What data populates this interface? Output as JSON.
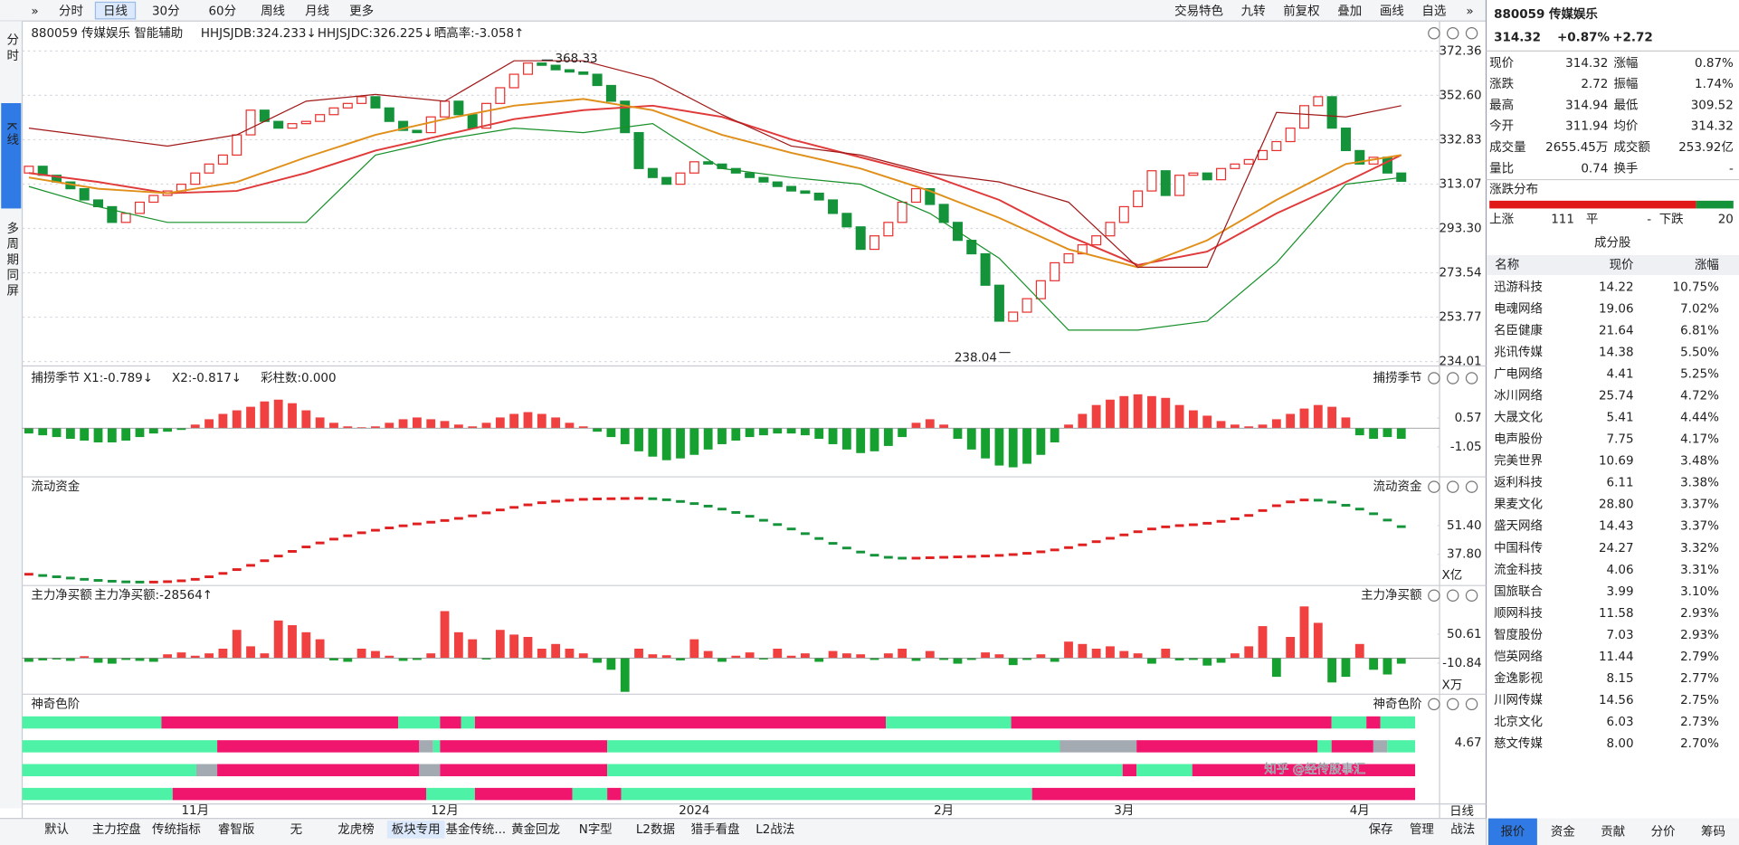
{
  "toolbar": {
    "left": [
      "分时",
      "日线",
      "30分",
      "60分",
      "周线",
      "月线",
      "更多"
    ],
    "active": 1,
    "right": [
      "交易特色",
      "九转",
      "前复权",
      "叠加",
      "画线",
      "自选"
    ]
  },
  "sidebar": {
    "items": [
      "分时",
      "K线",
      "多周期同屏"
    ],
    "active": 1
  },
  "chart_data": [
    {
      "type": "candlestick",
      "title": "880059 传媒娱乐",
      "indicators": [
        "智能辅助",
        "HHJSJDB:324.233↓",
        "HHJSJDC:326.225↓",
        "晒高率:-3.058↑"
      ],
      "indicator_colors": [
        "#333333",
        "#d49a10",
        "#d03030",
        "#d49a10"
      ],
      "first_open": 318,
      "closes": [
        321,
        317,
        314,
        311,
        306,
        303,
        296,
        300,
        305,
        308,
        310,
        313,
        318,
        322,
        326,
        335,
        346,
        341,
        338,
        340,
        341,
        344,
        347,
        349,
        352,
        347,
        341,
        337,
        336,
        343,
        350,
        344,
        338,
        349,
        356,
        362,
        367,
        366,
        364,
        363,
        362,
        357,
        350,
        336,
        320,
        316,
        313,
        318,
        323,
        322,
        320,
        318,
        316,
        314,
        312,
        310,
        309,
        306,
        300,
        294,
        284,
        290,
        296,
        305,
        311,
        304,
        296,
        288,
        282,
        268,
        252,
        256,
        262,
        270,
        278,
        282,
        286,
        290,
        296,
        303,
        310,
        319,
        308,
        317,
        318,
        315,
        320,
        322,
        324,
        328,
        332,
        338,
        348,
        352,
        338,
        328,
        322,
        325,
        318,
        314.32
      ],
      "up_color": "#e8312f",
      "down_color": "#15933a",
      "line_index": [
        0,
        5,
        10,
        15,
        20,
        25,
        30,
        35,
        40,
        45,
        50,
        55,
        60,
        65,
        70,
        75,
        80,
        85,
        90,
        95,
        99
      ],
      "lines": [
        {
          "color": "#e03a3a",
          "values": [
            318,
            314,
            309,
            310,
            318,
            328,
            335,
            342,
            346,
            348,
            343,
            333,
            325,
            317,
            306,
            290,
            277,
            283,
            300,
            314,
            326
          ]
        },
        {
          "color": "#e0901a",
          "values": [
            316,
            311,
            309,
            314,
            325,
            335,
            342,
            348,
            351,
            346,
            335,
            327,
            320,
            310,
            298,
            284,
            276,
            288,
            306,
            322,
            326
          ]
        },
        {
          "color": "#a01818",
          "values": [
            338,
            334,
            330,
            335,
            350,
            353,
            350,
            368,
            368,
            360,
            344,
            330,
            326,
            318,
            314,
            305,
            276,
            276,
            345,
            343,
            348
          ]
        },
        {
          "color": "#18902a",
          "values": [
            312,
            303,
            296,
            296,
            296,
            326,
            333,
            338,
            336,
            340,
            320,
            316,
            313,
            300,
            280,
            248,
            248,
            252,
            278,
            313,
            316
          ]
        }
      ],
      "annotations": [
        {
          "index": 37,
          "value": 368.33
        },
        {
          "index": 70,
          "value": 238.04
        }
      ],
      "ylim": [
        234.01,
        372.36
      ],
      "yticks": [
        372.36,
        {
          "value": 352.6,
          "label": "352.60"
        },
        332.83,
        313.07,
        {
          "value": 293.3,
          "label": "293.30"
        },
        273.54,
        253.77,
        234.01
      ],
      "grid": true,
      "x_labels": [
        {
          "index": 12,
          "label": "11月"
        },
        {
          "index": 30,
          "label": "12月"
        },
        {
          "index": 48,
          "label": "2024"
        },
        {
          "index": 66,
          "label": "2月"
        },
        {
          "index": 79,
          "label": "3月"
        },
        {
          "index": 96,
          "label": "4月"
        }
      ]
    },
    {
      "type": "bar",
      "title": "捕捞季节",
      "legend": [
        "X1:-0.789↓",
        "X2:-0.817↓",
        "彩柱数:0.000"
      ],
      "legend_colors": [
        "#d49a10",
        "#c020c0",
        "#15933a"
      ],
      "values": [
        -0.3,
        -0.4,
        -0.5,
        -0.6,
        -0.7,
        -0.8,
        -0.8,
        -0.7,
        -0.5,
        -0.3,
        -0.2,
        -0.1,
        0.2,
        0.5,
        0.8,
        1.0,
        1.2,
        1.5,
        1.6,
        1.4,
        1.0,
        0.6,
        0.3,
        0.1,
        0.05,
        0.1,
        0.3,
        0.5,
        0.6,
        0.5,
        0.4,
        0.2,
        0.1,
        0.3,
        0.6,
        0.8,
        0.9,
        0.8,
        0.6,
        0.3,
        0.1,
        -0.2,
        -0.5,
        -0.9,
        -1.3,
        -1.6,
        -1.8,
        -1.7,
        -1.5,
        -1.2,
        -0.9,
        -0.7,
        -0.5,
        -0.4,
        -0.3,
        -0.3,
        -0.4,
        -0.6,
        -0.9,
        -1.2,
        -1.4,
        -1.3,
        -1.0,
        -0.5,
        0.3,
        0.5,
        0.2,
        -0.6,
        -1.2,
        -1.7,
        -2.1,
        -2.2,
        -2.0,
        -1.5,
        -0.8,
        0.2,
        0.8,
        1.3,
        1.6,
        1.8,
        1.9,
        1.8,
        1.7,
        1.3,
        1.0,
        0.7,
        0.4,
        0.2,
        0.1,
        0.2,
        0.5,
        0.8,
        1.1,
        1.3,
        1.2,
        0.6,
        -0.4,
        -0.6,
        -0.5,
        -0.6
      ],
      "up_color": "#f04040",
      "down_color": "#15a030",
      "ylim": [
        -2.61,
        2.87
      ],
      "yticks": [
        0.57,
        -1.05
      ]
    },
    {
      "type": "dots",
      "title": "流动资金",
      "unit": "X亿",
      "values": [
        28.4,
        27.8,
        27.2,
        26.6,
        26.0,
        25.5,
        25.1,
        24.8,
        24.7,
        24.7,
        24.9,
        25.3,
        26.0,
        27.2,
        28.8,
        30.6,
        32.6,
        34.8,
        37.0,
        39.2,
        41.3,
        43.2,
        45.0,
        46.6,
        48.0,
        49.2,
        50.3,
        51.3,
        52.2,
        53.0,
        53.8,
        54.8,
        56.0,
        57.4,
        58.8,
        60.0,
        61.2,
        62.2,
        62.9,
        63.4,
        63.8,
        64.0,
        64.1,
        64.2,
        64.3,
        64.1,
        63.6,
        62.8,
        61.8,
        60.6,
        59.2,
        57.6,
        55.8,
        53.9,
        51.9,
        49.8,
        47.6,
        45.3,
        43.0,
        40.8,
        38.9,
        37.4,
        36.4,
        36.0,
        36.0,
        36.2,
        36.4,
        36.6,
        36.8,
        37.0,
        37.3,
        37.7,
        38.3,
        39.0,
        39.9,
        41.0,
        42.3,
        43.8,
        45.4,
        47.0,
        48.5,
        49.8,
        50.8,
        51.4,
        51.8,
        52.5,
        53.4,
        54.6,
        56.2,
        58.5,
        60.8,
        62.6,
        63.5,
        63.4,
        62.5,
        61.0,
        59.2,
        57.0,
        54.0,
        50.9
      ],
      "up_color": "#e02020",
      "down_color": "#15933a",
      "ylim": [
        23.6,
        69.2
      ],
      "yticks": [
        {
          "value": 51.4,
          "label": "51.40"
        },
        {
          "value": 37.8,
          "label": "37.80"
        }
      ]
    },
    {
      "type": "bar",
      "title": "主力净买额",
      "legend": [
        "主力净买额:-28564↑"
      ],
      "legend_colors": [
        "#15933a"
      ],
      "unit": "X万",
      "values": [
        -8,
        -5,
        -3,
        -6,
        4,
        -10,
        -12,
        -4,
        -6,
        -8,
        8,
        12,
        5,
        10,
        20,
        60,
        25,
        10,
        80,
        70,
        55,
        40,
        -5,
        -8,
        20,
        15,
        5,
        -6,
        -4,
        10,
        100,
        55,
        40,
        -3,
        60,
        50,
        45,
        20,
        30,
        20,
        10,
        -10,
        -25,
        -72,
        20,
        8,
        6,
        -5,
        40,
        15,
        -8,
        5,
        12,
        -3,
        20,
        5,
        10,
        -8,
        15,
        10,
        8,
        -4,
        10,
        20,
        -6,
        15,
        -4,
        -12,
        -4,
        12,
        8,
        -15,
        -4,
        8,
        -8,
        35,
        30,
        20,
        25,
        15,
        10,
        -12,
        20,
        -5,
        -4,
        -16,
        -10,
        10,
        25,
        68,
        -40,
        45,
        110,
        75,
        -52,
        -40,
        30,
        -25,
        -35,
        -12
      ],
      "up_color": "#f04040",
      "down_color": "#15a030",
      "ylim": [
        -77.0,
        126.2
      ],
      "yticks": [
        50.61,
        -10.84
      ]
    },
    {
      "type": "bands",
      "title": "神奇色阶",
      "yticks": [
        4.67
      ],
      "rows": [
        [
          [
            0,
            10,
            "#4ef2a6"
          ],
          [
            10,
            27,
            "#f0166e"
          ],
          [
            27,
            30,
            "#4ef2a6"
          ],
          [
            30,
            31.5,
            "#f0166e"
          ],
          [
            31.5,
            32.5,
            "#4ef2a6"
          ],
          [
            32.5,
            62,
            "#f0166e"
          ],
          [
            62,
            71,
            "#4ef2a6"
          ],
          [
            71,
            94,
            "#f0166e"
          ],
          [
            94,
            96.5,
            "#4ef2a6"
          ],
          [
            96.5,
            97.5,
            "#f0166e"
          ],
          [
            97.5,
            100,
            "#4ef2a6"
          ]
        ],
        [
          [
            0,
            14,
            "#4ef2a6"
          ],
          [
            14,
            28.5,
            "#f0166e"
          ],
          [
            28.5,
            29.5,
            "#a4aab2"
          ],
          [
            29.5,
            30,
            "#4ef2a6"
          ],
          [
            30,
            42,
            "#f0166e"
          ],
          [
            42,
            74.5,
            "#4ef2a6"
          ],
          [
            74.5,
            80,
            "#a4aab2"
          ],
          [
            80,
            93,
            "#f0166e"
          ],
          [
            93,
            94,
            "#4ef2a6"
          ],
          [
            94,
            97,
            "#f0166e"
          ],
          [
            97,
            98,
            "#a4aab2"
          ],
          [
            98,
            100,
            "#4ef2a6"
          ]
        ],
        [
          [
            0,
            12.5,
            "#4ef2a6"
          ],
          [
            12.5,
            14,
            "#a4aab2"
          ],
          [
            14,
            28.5,
            "#f0166e"
          ],
          [
            28.5,
            30,
            "#a4aab2"
          ],
          [
            30,
            42,
            "#f0166e"
          ],
          [
            42,
            79,
            "#4ef2a6"
          ],
          [
            79,
            80,
            "#f0166e"
          ],
          [
            80,
            84,
            "#4ef2a6"
          ],
          [
            84,
            100,
            "#f0166e"
          ]
        ],
        [
          [
            0,
            10.8,
            "#4ef2a6"
          ],
          [
            10.8,
            29,
            "#f0166e"
          ],
          [
            29,
            32.5,
            "#4ef2a6"
          ],
          [
            32.5,
            39.5,
            "#f0166e"
          ],
          [
            39.5,
            42,
            "#4ef2a6"
          ],
          [
            42,
            43,
            "#f0166e"
          ],
          [
            43,
            72.5,
            "#4ef2a6"
          ],
          [
            72.5,
            100,
            "#f0166e"
          ]
        ]
      ]
    }
  ],
  "bottom_tabs": {
    "items": [
      "默认",
      "主力控盘",
      "传统指标",
      "睿智版",
      "无",
      "龙虎榜",
      "板块专用",
      "基金传统...",
      "黄金回龙",
      "N字型",
      "L2数据",
      "猎手看盘",
      "L2战法"
    ],
    "active": 6,
    "right": [
      "保存",
      "管理",
      "战法"
    ],
    "period": "日线"
  },
  "quote": {
    "code": "880059 传媒娱乐",
    "price": "314.32",
    "change_pct": "+0.87%",
    "change": "+2.72",
    "rows": [
      [
        "现价",
        "314.32",
        "涨幅",
        "0.87%"
      ],
      [
        "涨跌",
        "2.72",
        "振幅",
        "1.74%"
      ],
      [
        "最高",
        "314.94",
        "最低",
        "309.52"
      ],
      [
        "今开",
        "311.94",
        "均价",
        "314.32"
      ],
      [
        "成交量",
        "2655.45万",
        "成交额",
        "253.92亿"
      ],
      [
        "量比",
        "0.74",
        "换手",
        "-"
      ]
    ],
    "row_colors": [
      [
        "#e8312f",
        "#e8312f"
      ],
      [
        "#e8312f",
        "#222222"
      ],
      [
        "#e8312f",
        "#15933a"
      ],
      [
        "#e8312f",
        "#e8312f"
      ],
      [
        "#222222",
        "#222222"
      ],
      [
        "#222222",
        "#222222"
      ]
    ]
  },
  "distribution": {
    "title": "涨跌分布",
    "up_label": "上涨",
    "up": 111,
    "flat_label": "平",
    "flat": "-",
    "down_label": "下跌",
    "down": 20
  },
  "constituents": {
    "title": "成分股",
    "columns": [
      "名称",
      "现价",
      "涨幅"
    ],
    "rows": [
      [
        "迅游科技",
        "14.22",
        "10.75%"
      ],
      [
        "电魂网络",
        "19.06",
        "7.02%"
      ],
      [
        "名臣健康",
        "21.64",
        "6.81%"
      ],
      [
        "兆讯传媒",
        "14.38",
        "5.50%"
      ],
      [
        "广电网络",
        "4.41",
        "5.25%"
      ],
      [
        "冰川网络",
        "25.74",
        "4.72%"
      ],
      [
        "大晟文化",
        "5.41",
        "4.44%"
      ],
      [
        "电声股份",
        "7.75",
        "4.17%"
      ],
      [
        "完美世界",
        "10.69",
        "3.48%"
      ],
      [
        "返利科技",
        "6.11",
        "3.38%"
      ],
      [
        "果麦文化",
        "28.80",
        "3.37%"
      ],
      [
        "盛天网络",
        "14.43",
        "3.37%"
      ],
      [
        "中国科传",
        "24.27",
        "3.32%"
      ],
      [
        "流金科技",
        "4.06",
        "3.31%"
      ],
      [
        "国旅联合",
        "3.99",
        "3.10%"
      ],
      [
        "顺网科技",
        "11.58",
        "2.93%"
      ],
      [
        "智度股份",
        "7.03",
        "2.93%"
      ],
      [
        "恺英网络",
        "11.44",
        "2.79%"
      ],
      [
        "金逸影视",
        "8.15",
        "2.77%"
      ],
      [
        "川网传媒",
        "14.56",
        "2.75%"
      ],
      [
        "北京文化",
        "6.03",
        "2.73%"
      ],
      [
        "慈文传媒",
        "8.00",
        "2.70%"
      ]
    ]
  },
  "quote_tabs": {
    "items": [
      "报价",
      "资金",
      "贡献",
      "分价",
      "筹码"
    ],
    "active": 0
  },
  "watermark": "知乎 @经传股事汇"
}
